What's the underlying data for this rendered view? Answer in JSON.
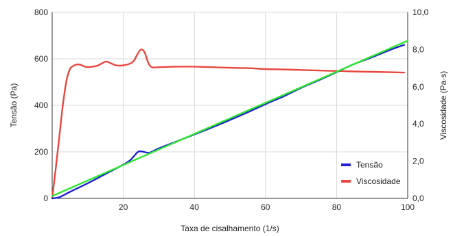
{
  "chart_data": {
    "type": "line",
    "xlabel": "Taxa de cisalhamento (1/s)",
    "ylabel_left": "Tensão (Pa)",
    "ylabel_right": "Viscosidade (Pa·s)",
    "xlim": [
      0,
      100
    ],
    "ylim_left": [
      0,
      800
    ],
    "ylim_right": [
      0,
      10
    ],
    "x_ticks": [
      20,
      40,
      60,
      80,
      100
    ],
    "y_ticks_left": [
      "0",
      "200",
      "400",
      "600",
      "800"
    ],
    "y_ticks_right": [
      "0,0",
      "2,0",
      "4,0",
      "6,0",
      "8,0",
      "10,0"
    ],
    "grid": true,
    "legend_position": "bottom-right",
    "series": [
      {
        "name": "Tensão",
        "axis": "left",
        "color": "#1f1fd6",
        "points": [
          [
            0,
            0
          ],
          [
            2,
            5
          ],
          [
            5,
            28
          ],
          [
            10,
            65
          ],
          [
            15,
            105
          ],
          [
            20,
            145
          ],
          [
            22,
            165
          ],
          [
            24,
            198
          ],
          [
            25,
            202
          ],
          [
            27,
            196
          ],
          [
            28,
            200
          ],
          [
            30,
            215
          ],
          [
            35,
            245
          ],
          [
            40,
            275
          ],
          [
            45,
            305
          ],
          [
            50,
            337
          ],
          [
            55,
            370
          ],
          [
            60,
            405
          ],
          [
            65,
            438
          ],
          [
            70,
            475
          ],
          [
            75,
            508
          ],
          [
            80,
            543
          ],
          [
            85,
            578
          ],
          [
            90,
            607
          ],
          [
            95,
            638
          ],
          [
            99,
            660
          ]
        ]
      },
      {
        "name": "Viscosidade",
        "axis": "right",
        "color": "#e8473f",
        "points": [
          [
            0,
            0
          ],
          [
            1,
            1.6
          ],
          [
            2,
            3.3
          ],
          [
            3,
            5.0
          ],
          [
            4,
            6.3
          ],
          [
            5,
            6.95
          ],
          [
            6,
            7.12
          ],
          [
            7,
            7.2
          ],
          [
            8,
            7.18
          ],
          [
            9,
            7.1
          ],
          [
            10,
            7.05
          ],
          [
            12,
            7.1
          ],
          [
            13,
            7.15
          ],
          [
            15,
            7.35
          ],
          [
            16,
            7.3
          ],
          [
            18,
            7.15
          ],
          [
            20,
            7.15
          ],
          [
            22,
            7.25
          ],
          [
            23,
            7.4
          ],
          [
            24,
            7.75
          ],
          [
            25,
            8.0
          ],
          [
            26,
            7.85
          ],
          [
            27,
            7.3
          ],
          [
            28,
            7.05
          ],
          [
            30,
            7.05
          ],
          [
            35,
            7.08
          ],
          [
            40,
            7.08
          ],
          [
            45,
            7.05
          ],
          [
            50,
            7.02
          ],
          [
            55,
            7.0
          ],
          [
            60,
            6.95
          ],
          [
            65,
            6.93
          ],
          [
            70,
            6.9
          ],
          [
            75,
            6.87
          ],
          [
            80,
            6.85
          ],
          [
            85,
            6.82
          ],
          [
            90,
            6.8
          ],
          [
            95,
            6.78
          ],
          [
            99,
            6.76
          ]
        ]
      },
      {
        "name": "",
        "axis": "left",
        "color": "#2ee82e",
        "points": [
          [
            0,
            10
          ],
          [
            100,
            678
          ]
        ]
      }
    ]
  }
}
